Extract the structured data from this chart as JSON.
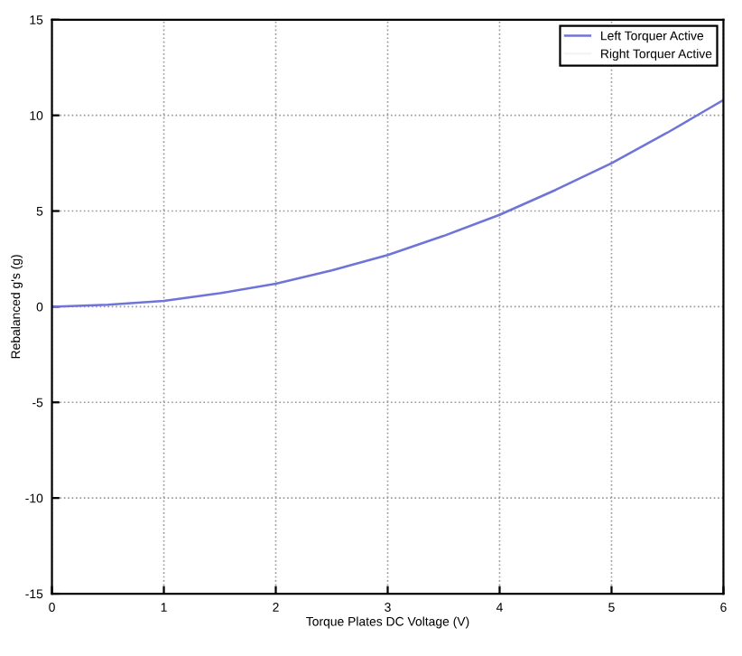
{
  "chart_data": {
    "type": "line",
    "xlabel": "Torque Plates DC Voltage (V)",
    "ylabel": "Rebalanced g's (g)",
    "xlim": [
      0,
      6
    ],
    "ylim": [
      -15,
      15
    ],
    "xticks": [
      0,
      1,
      2,
      3,
      4,
      5,
      6
    ],
    "yticks": [
      -15,
      -10,
      -5,
      0,
      5,
      10,
      15
    ],
    "grid": true,
    "legend": "top right",
    "series": [
      {
        "name": "Left Torquer Active",
        "color": "#6f74d8",
        "x": [
          0,
          0.5,
          1,
          1.5,
          2,
          2.5,
          3,
          3.5,
          4,
          4.5,
          5,
          5.5,
          6
        ],
        "values": [
          0,
          0.1,
          0.3,
          0.7,
          1.2,
          1.9,
          2.7,
          3.7,
          4.8,
          6.1,
          7.5,
          9.1,
          10.8
        ]
      },
      {
        "name": "Right Torquer Active",
        "color": "#f4f4f4",
        "type": "line"
      }
    ]
  }
}
